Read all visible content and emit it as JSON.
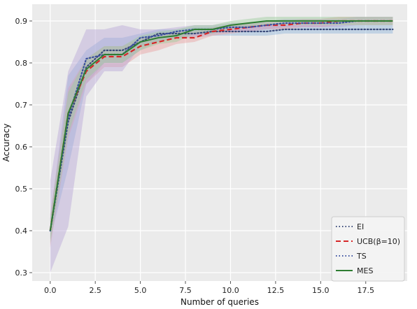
{
  "chart_data": {
    "type": "line",
    "title": "",
    "xlabel": "Number of queries",
    "ylabel": "Accuracy",
    "xlim": [
      -1.0,
      19.8
    ],
    "ylim": [
      0.28,
      0.94
    ],
    "xticks": [
      0.0,
      2.5,
      5.0,
      7.5,
      10.0,
      12.5,
      15.0,
      17.5
    ],
    "xtick_labels": [
      "0.0",
      "2.5",
      "5.0",
      "7.5",
      "10.0",
      "12.5",
      "15.0",
      "17.5"
    ],
    "yticks": [
      0.3,
      0.4,
      0.5,
      0.6,
      0.7,
      0.8,
      0.9
    ],
    "ytick_labels": [
      "0.3",
      "0.4",
      "0.5",
      "0.6",
      "0.7",
      "0.8",
      "0.9"
    ],
    "grid": true,
    "background": "#ebebeb",
    "legend_position": "lower-right",
    "x": [
      0,
      1,
      2,
      3,
      4,
      5,
      6,
      7,
      8,
      9,
      10,
      11,
      12,
      13,
      14,
      15,
      16,
      17,
      18,
      19
    ],
    "series": [
      {
        "name": "EI",
        "color": "#3a4a7a",
        "style": "dotted",
        "values": [
          0.4,
          0.66,
          0.79,
          0.83,
          0.83,
          0.85,
          0.87,
          0.87,
          0.87,
          0.875,
          0.875,
          0.875,
          0.875,
          0.88,
          0.88,
          0.88,
          0.88,
          0.88,
          0.88,
          0.88
        ],
        "lower": [
          0.38,
          0.55,
          0.75,
          0.8,
          0.8,
          0.83,
          0.85,
          0.86,
          0.86,
          0.865,
          0.865,
          0.865,
          0.865,
          0.87,
          0.87,
          0.87,
          0.87,
          0.87,
          0.87,
          0.87
        ],
        "upper": [
          0.43,
          0.77,
          0.83,
          0.86,
          0.86,
          0.87,
          0.88,
          0.88,
          0.885,
          0.885,
          0.89,
          0.89,
          0.89,
          0.89,
          0.89,
          0.89,
          0.89,
          0.89,
          0.89,
          0.89
        ],
        "band_color": "#8fb4d9"
      },
      {
        "name": "UCB(β=10)",
        "color": "#d62728",
        "style": "dashed",
        "values": [
          0.4,
          0.68,
          0.78,
          0.815,
          0.815,
          0.84,
          0.85,
          0.86,
          0.86,
          0.875,
          0.88,
          0.885,
          0.89,
          0.89,
          0.895,
          0.895,
          0.9,
          0.9,
          0.9,
          0.9
        ],
        "lower": [
          0.36,
          0.62,
          0.75,
          0.79,
          0.79,
          0.82,
          0.83,
          0.845,
          0.85,
          0.865,
          0.87,
          0.875,
          0.88,
          0.88,
          0.885,
          0.885,
          0.89,
          0.89,
          0.89,
          0.89
        ],
        "upper": [
          0.44,
          0.74,
          0.81,
          0.84,
          0.84,
          0.86,
          0.87,
          0.875,
          0.875,
          0.885,
          0.89,
          0.895,
          0.9,
          0.9,
          0.905,
          0.905,
          0.91,
          0.91,
          0.91,
          0.91
        ],
        "band_color": "#e8a0a0"
      },
      {
        "name": "TS",
        "color": "#3a4fa0",
        "style": "dotted",
        "values": [
          0.4,
          0.67,
          0.81,
          0.82,
          0.82,
          0.86,
          0.865,
          0.875,
          0.88,
          0.88,
          0.885,
          0.885,
          0.89,
          0.895,
          0.895,
          0.895,
          0.895,
          0.9,
          0.9,
          0.9
        ],
        "lower": [
          0.3,
          0.41,
          0.72,
          0.78,
          0.78,
          0.84,
          0.85,
          0.86,
          0.865,
          0.87,
          0.875,
          0.875,
          0.88,
          0.885,
          0.885,
          0.885,
          0.885,
          0.89,
          0.89,
          0.89
        ],
        "upper": [
          0.52,
          0.78,
          0.88,
          0.88,
          0.89,
          0.88,
          0.88,
          0.885,
          0.89,
          0.89,
          0.895,
          0.895,
          0.9,
          0.905,
          0.905,
          0.905,
          0.905,
          0.91,
          0.91,
          0.91
        ],
        "band_color": "#b9a6d6"
      },
      {
        "name": "MES",
        "color": "#2e7d32",
        "style": "solid",
        "values": [
          0.4,
          0.68,
          0.785,
          0.82,
          0.82,
          0.85,
          0.86,
          0.865,
          0.88,
          0.88,
          0.89,
          0.895,
          0.9,
          0.9,
          0.9,
          0.9,
          0.9,
          0.9,
          0.9,
          0.9
        ],
        "lower": [
          0.37,
          0.63,
          0.76,
          0.8,
          0.8,
          0.83,
          0.845,
          0.85,
          0.87,
          0.87,
          0.88,
          0.885,
          0.89,
          0.89,
          0.89,
          0.89,
          0.89,
          0.89,
          0.89,
          0.89
        ],
        "upper": [
          0.43,
          0.73,
          0.81,
          0.84,
          0.84,
          0.865,
          0.875,
          0.88,
          0.89,
          0.89,
          0.9,
          0.905,
          0.91,
          0.91,
          0.91,
          0.91,
          0.91,
          0.91,
          0.91,
          0.91
        ],
        "band_color": "#9ccc9c"
      }
    ]
  }
}
